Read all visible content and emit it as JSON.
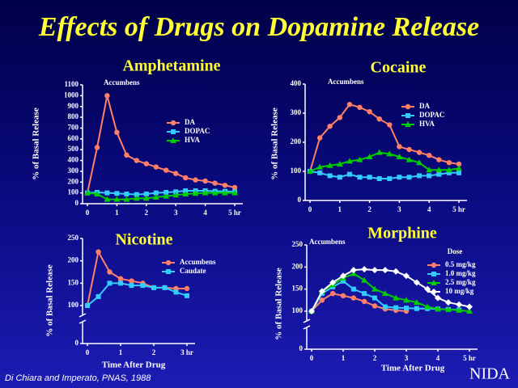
{
  "title": "Effects of Drugs on Dopamine Release",
  "citation": "Di Chiara and Imperato, PNAS, 1988",
  "logo": "NIDA",
  "chart_data": [
    {
      "type": "line",
      "title": "Amphetamine",
      "annotation": "Accumbens",
      "y_label": "% of Basal Release",
      "ylim": [
        0,
        1100
      ],
      "yticks": [
        0,
        100,
        200,
        300,
        400,
        500,
        600,
        700,
        800,
        900,
        1000,
        1100
      ],
      "xlim": [
        0,
        5
      ],
      "xticks": [
        0,
        1,
        2,
        3,
        4,
        {
          "value": 5,
          "label": "5 hr"
        }
      ],
      "x": [
        0,
        0.33,
        0.67,
        1,
        1.33,
        1.67,
        2,
        2.33,
        2.67,
        3,
        3.33,
        3.67,
        4,
        4.33,
        4.67,
        5
      ],
      "series": [
        {
          "name": "DA",
          "color": "#ff8066",
          "marker": "circle",
          "values": [
            100,
            520,
            1000,
            660,
            450,
            400,
            370,
            340,
            310,
            280,
            240,
            220,
            210,
            190,
            170,
            150
          ]
        },
        {
          "name": "DOPAC",
          "color": "#33ccff",
          "marker": "square",
          "values": [
            100,
            105,
            100,
            95,
            90,
            85,
            90,
            100,
            105,
            110,
            120,
            120,
            120,
            115,
            115,
            110
          ]
        },
        {
          "name": "HVA",
          "color": "#00cc00",
          "marker": "triangle",
          "values": [
            100,
            90,
            40,
            40,
            40,
            50,
            50,
            60,
            70,
            80,
            90,
            95,
            100,
            100,
            100,
            100
          ]
        }
      ]
    },
    {
      "type": "line",
      "title": "Cocaine",
      "annotation": "Accumbens",
      "y_label": "% of Basal Release",
      "ylim": [
        0,
        400
      ],
      "yticks": [
        0,
        100,
        200,
        300,
        400
      ],
      "xlim": [
        0,
        5
      ],
      "xticks": [
        0,
        1,
        2,
        3,
        4,
        {
          "value": 5,
          "label": "5 hr"
        }
      ],
      "x": [
        0,
        0.33,
        0.67,
        1,
        1.33,
        1.67,
        2,
        2.33,
        2.67,
        3,
        3.33,
        3.67,
        4,
        4.33,
        4.67,
        5
      ],
      "series": [
        {
          "name": "DA",
          "color": "#ff8066",
          "marker": "circle",
          "values": [
            100,
            215,
            255,
            285,
            330,
            320,
            305,
            280,
            260,
            185,
            175,
            165,
            155,
            140,
            130,
            125
          ]
        },
        {
          "name": "DOPAC",
          "color": "#33ccff",
          "marker": "square",
          "values": [
            100,
            95,
            85,
            80,
            90,
            80,
            80,
            75,
            75,
            80,
            80,
            85,
            85,
            90,
            95,
            95
          ]
        },
        {
          "name": "HVA",
          "color": "#00cc00",
          "marker": "triangle",
          "values": [
            100,
            115,
            120,
            125,
            135,
            140,
            150,
            165,
            160,
            150,
            140,
            130,
            105,
            105,
            105,
            110
          ]
        }
      ]
    },
    {
      "type": "line",
      "title": "Nicotine",
      "y_label": "% of Basal Release",
      "x_label": "Time After Drug",
      "y_break": true,
      "ylim": [
        0,
        250
      ],
      "yticks": [
        0,
        100,
        150,
        200,
        250
      ],
      "xlim": [
        0,
        3
      ],
      "xticks": [
        0,
        1,
        2,
        {
          "value": 3,
          "label": "3 hr"
        }
      ],
      "x": [
        0,
        0.33,
        0.67,
        1,
        1.33,
        1.67,
        2,
        2.33,
        2.67,
        3
      ],
      "series": [
        {
          "name": "Accumbens",
          "color": "#ff8066",
          "marker": "circle",
          "values": [
            100,
            220,
            175,
            160,
            155,
            150,
            140,
            140,
            138,
            138
          ]
        },
        {
          "name": "Caudate",
          "color": "#33ccff",
          "marker": "square",
          "values": [
            100,
            120,
            150,
            150,
            145,
            145,
            140,
            140,
            130,
            122
          ]
        }
      ]
    },
    {
      "type": "line",
      "title": "Morphine",
      "annotation": "Accumbens",
      "y_label": "% of Basal Release",
      "x_label": "Time After Drug",
      "legend_title": "Dose",
      "y_break": true,
      "ylim": [
        0,
        250
      ],
      "yticks": [
        0,
        100,
        150,
        200,
        250
      ],
      "xlim": [
        0,
        5
      ],
      "xticks": [
        0,
        1,
        2,
        3,
        4,
        {
          "value": 5,
          "label": "5 hr"
        }
      ],
      "x": [
        0,
        0.33,
        0.67,
        1,
        1.33,
        1.67,
        2,
        2.33,
        2.67,
        3,
        3.33,
        3.67,
        4,
        4.33,
        4.67,
        5
      ],
      "series": [
        {
          "name": "0.5 mg/kg",
          "color": "#ff8066",
          "marker": "circle",
          "values": [
            100,
            125,
            140,
            135,
            130,
            122,
            112,
            105,
            102,
            100,
            null,
            null,
            null,
            null,
            null,
            null
          ]
        },
        {
          "name": "1.0 mg/kg",
          "color": "#33ccff",
          "marker": "square",
          "values": [
            100,
            140,
            155,
            168,
            150,
            140,
            130,
            110,
            108,
            107,
            106,
            106,
            105,
            104,
            103,
            null
          ]
        },
        {
          "name": "2.5 mg/kg",
          "color": "#00cc00",
          "marker": "triangle",
          "values": [
            100,
            145,
            160,
            175,
            185,
            170,
            150,
            140,
            130,
            125,
            120,
            110,
            105,
            104,
            102,
            100
          ]
        },
        {
          "name": "10 mg/kg",
          "color": "#ffffff",
          "marker": "diamond",
          "values": [
            100,
            145,
            165,
            180,
            193,
            195,
            193,
            193,
            190,
            180,
            165,
            150,
            130,
            120,
            115,
            110
          ]
        }
      ]
    }
  ]
}
